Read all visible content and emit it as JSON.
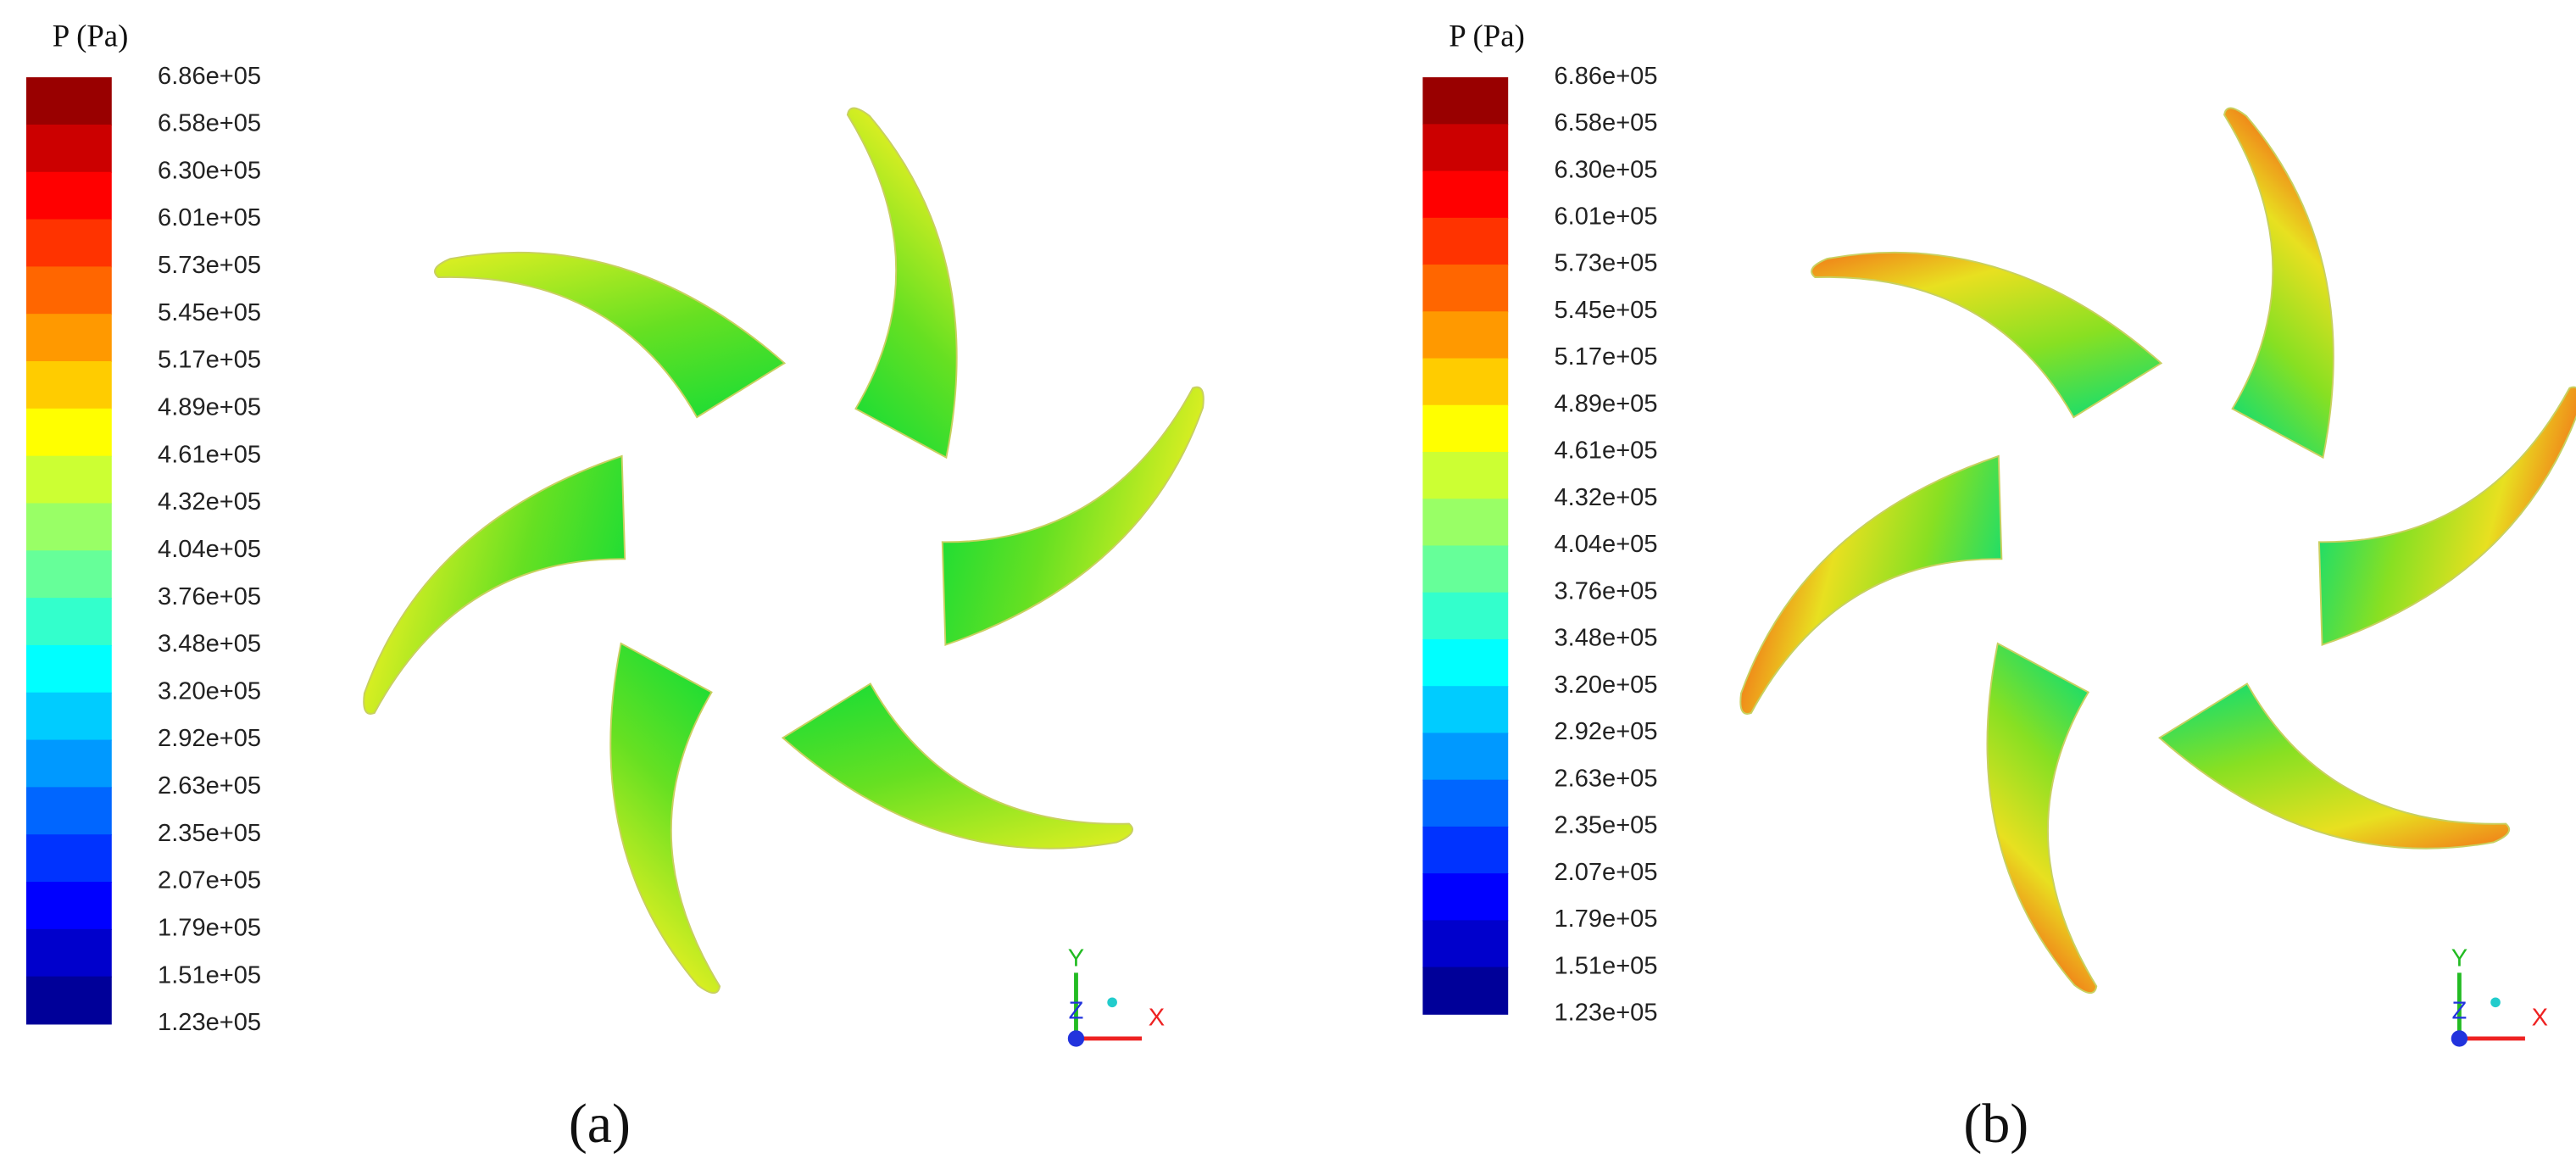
{
  "panels": [
    {
      "legend_title": "P (Pa)",
      "legend_labels": [
        "6.86e+05",
        "6.58e+05",
        "6.30e+05",
        "6.01e+05",
        "5.73e+05",
        "5.45e+05",
        "5.17e+05",
        "4.89e+05",
        "4.61e+05",
        "4.32e+05",
        "4.04e+05",
        "3.76e+05",
        "3.48e+05",
        "3.20e+05",
        "2.92e+05",
        "2.63e+05",
        "2.35e+05",
        "2.07e+05",
        "1.79e+05",
        "1.51e+05",
        "1.23e+05"
      ],
      "axis_labels": {
        "y": "Y",
        "z": "Z",
        "x": "X"
      },
      "caption": "(a)"
    },
    {
      "legend_title": "P (Pa)",
      "legend_labels": [
        "6.86e+05",
        "6.58e+05",
        "6.30e+05",
        "6.01e+05",
        "5.73e+05",
        "5.45e+05",
        "5.17e+05",
        "4.89e+05",
        "4.61e+05",
        "4.32e+05",
        "4.04e+05",
        "3.76e+05",
        "3.48e+05",
        "3.20e+05",
        "2.92e+05",
        "2.63e+05",
        "2.35e+05",
        "2.07e+05",
        "1.79e+05",
        "1.51e+05",
        "1.23e+05"
      ],
      "axis_labels": {
        "y": "Y",
        "z": "Z",
        "x": "X"
      },
      "caption": "(b)"
    }
  ]
}
